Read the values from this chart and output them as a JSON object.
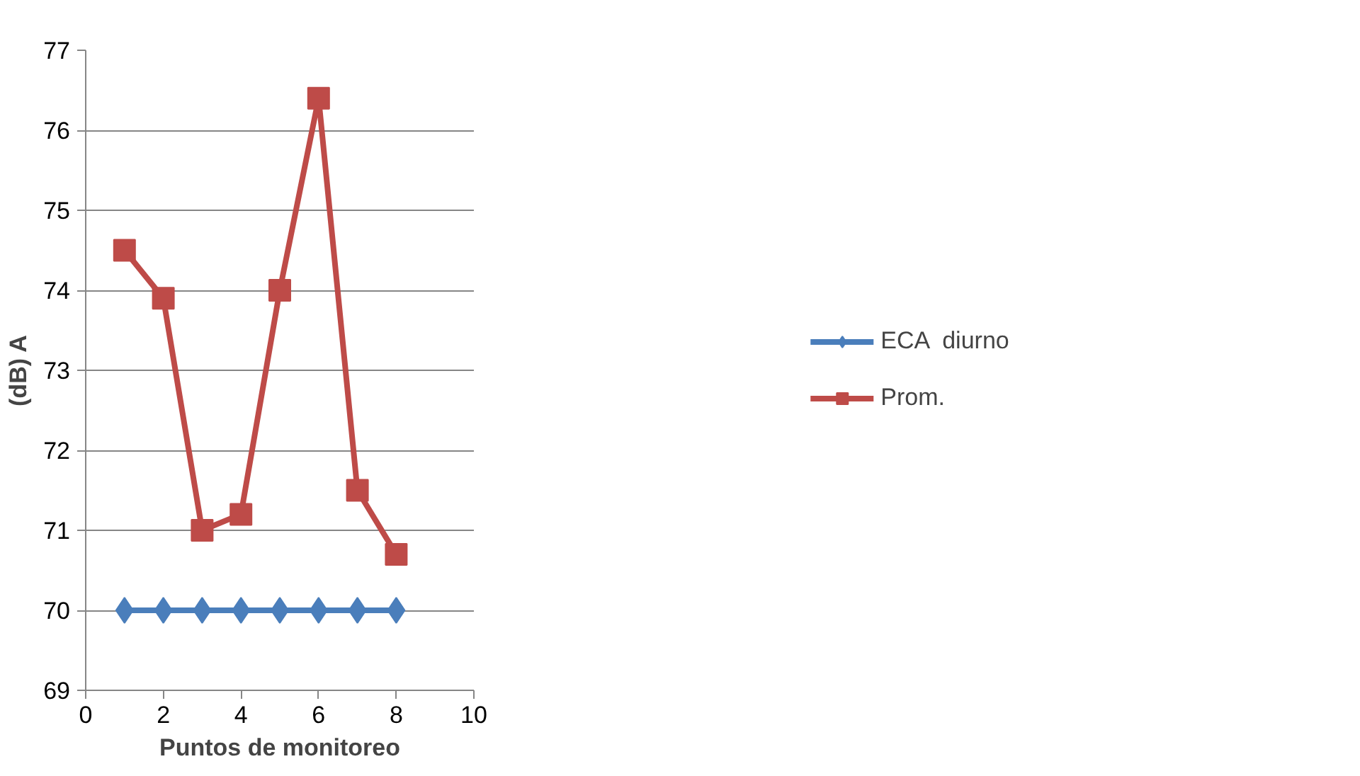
{
  "chart_data": {
    "type": "line",
    "xlabel": "Puntos de monitoreo",
    "ylabel": "(dB) A",
    "x": [
      1,
      2,
      3,
      4,
      5,
      6,
      7,
      8
    ],
    "series": [
      {
        "name": "ECA  diurno",
        "color": "#4a7ebb",
        "marker": "diamond",
        "values": [
          70,
          70,
          70,
          70,
          70,
          70,
          70,
          70
        ]
      },
      {
        "name": "Prom.",
        "color": "#be4b48",
        "marker": "square",
        "values": [
          74.5,
          73.9,
          71.0,
          71.2,
          74.0,
          76.4,
          71.5,
          70.7
        ]
      }
    ],
    "xlim": [
      0,
      10
    ],
    "xticks": [
      0,
      2,
      4,
      6,
      8,
      10
    ],
    "ylim": [
      69,
      77
    ],
    "yticks": [
      69,
      70,
      71,
      72,
      73,
      74,
      75,
      76,
      77
    ],
    "grid": "y",
    "legend": "right",
    "line_style": "solid"
  }
}
